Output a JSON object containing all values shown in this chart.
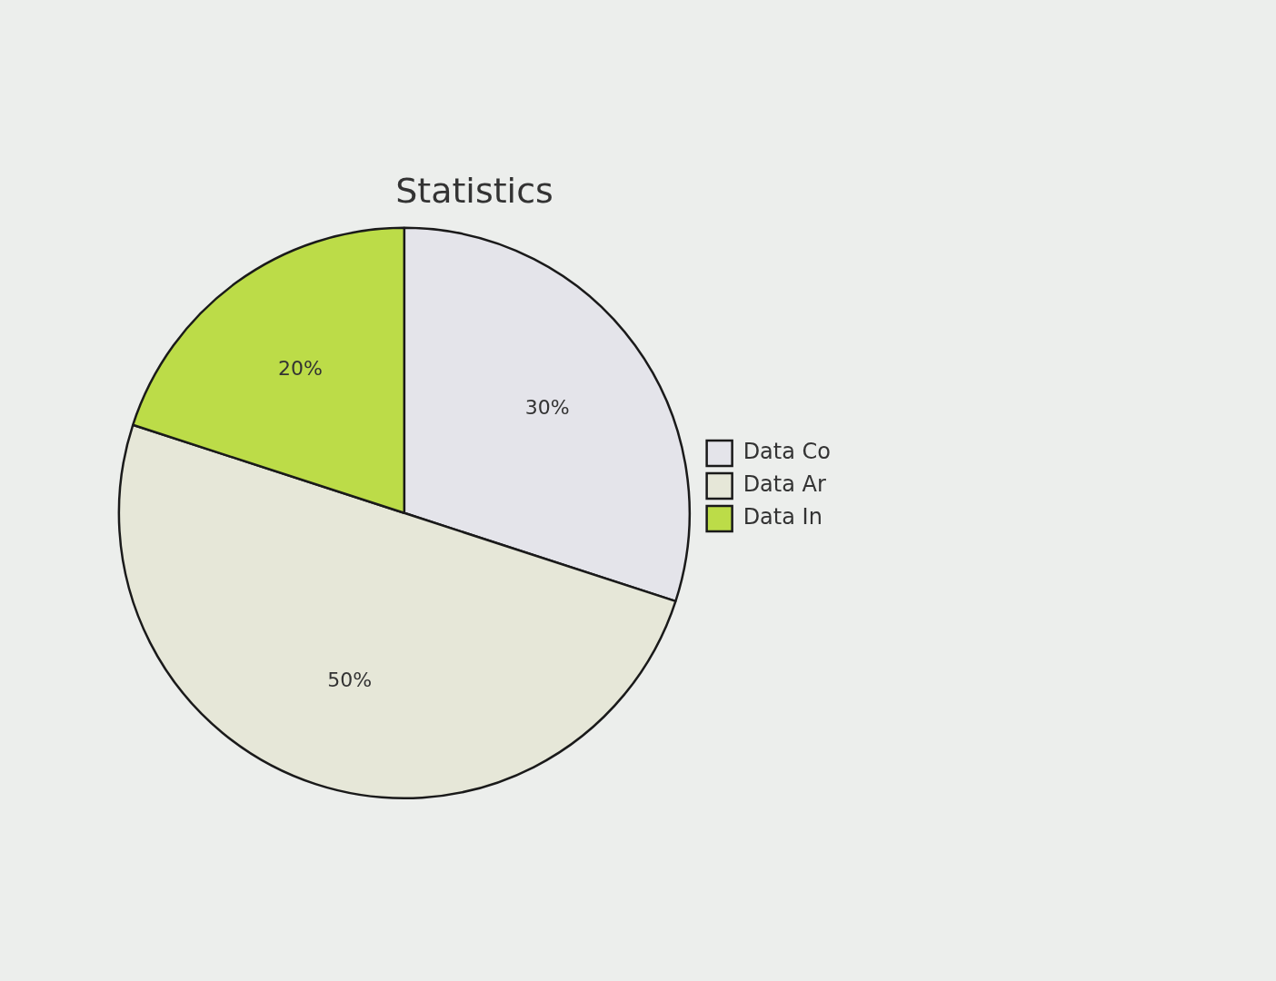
{
  "chart_data": {
    "type": "pie",
    "title": "Statistics",
    "categories": [
      "Data Co",
      "Data Ar",
      "Data In"
    ],
    "values": [
      30,
      50,
      20
    ],
    "colors": [
      "#e4e4ea",
      "#e6e7d8",
      "#bcdc48"
    ],
    "value_labels": [
      "30%",
      "50%",
      "20%"
    ],
    "legend": "right"
  }
}
